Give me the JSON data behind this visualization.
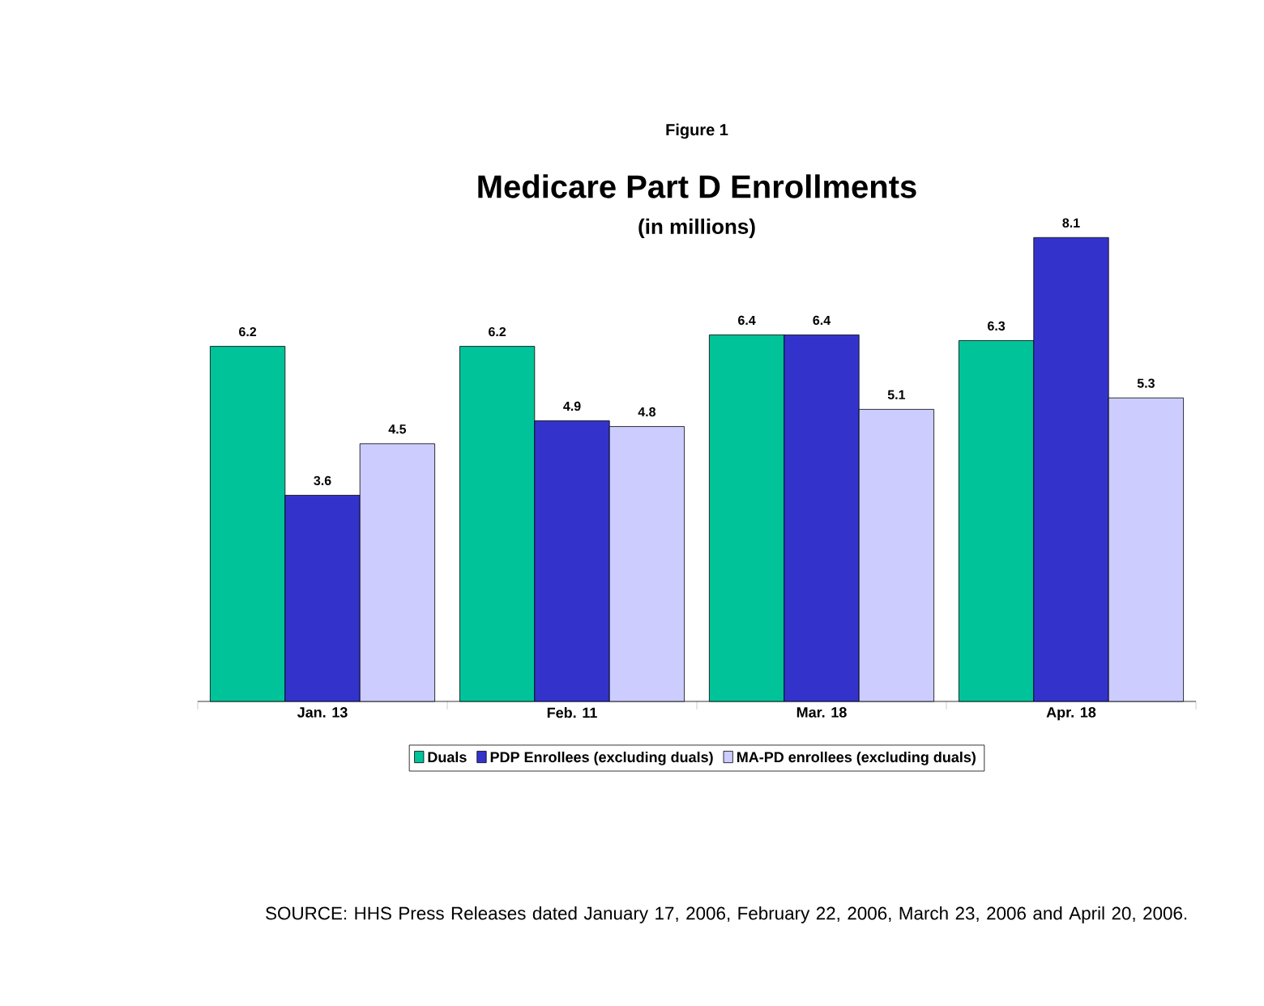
{
  "chart_data": {
    "type": "bar",
    "title": "Medicare Part D Enrollments",
    "subtitle": "(in millions)",
    "annotations": [
      "Figure 1",
      "SOURCE: HHS Press Releases dated January 17, 2006, February 22, 2006, March 23, 2006 and April 20, 2006."
    ],
    "categories": [
      "Jan. 13",
      "Feb. 11",
      "Mar. 18",
      "Apr. 18"
    ],
    "series": [
      {
        "name": "Duals",
        "color": "#00c39a",
        "values": [
          6.2,
          6.2,
          6.4,
          6.3
        ]
      },
      {
        "name": "PDP Enrollees (excluding duals)",
        "color": "#3333cc",
        "values": [
          3.6,
          4.9,
          6.4,
          8.1
        ]
      },
      {
        "name": "MA-PD enrollees (excluding duals)",
        "color": "#ccccff",
        "values": [
          4.5,
          4.8,
          5.1,
          5.3
        ]
      }
    ],
    "data_labels": true,
    "legend": "bottom"
  }
}
